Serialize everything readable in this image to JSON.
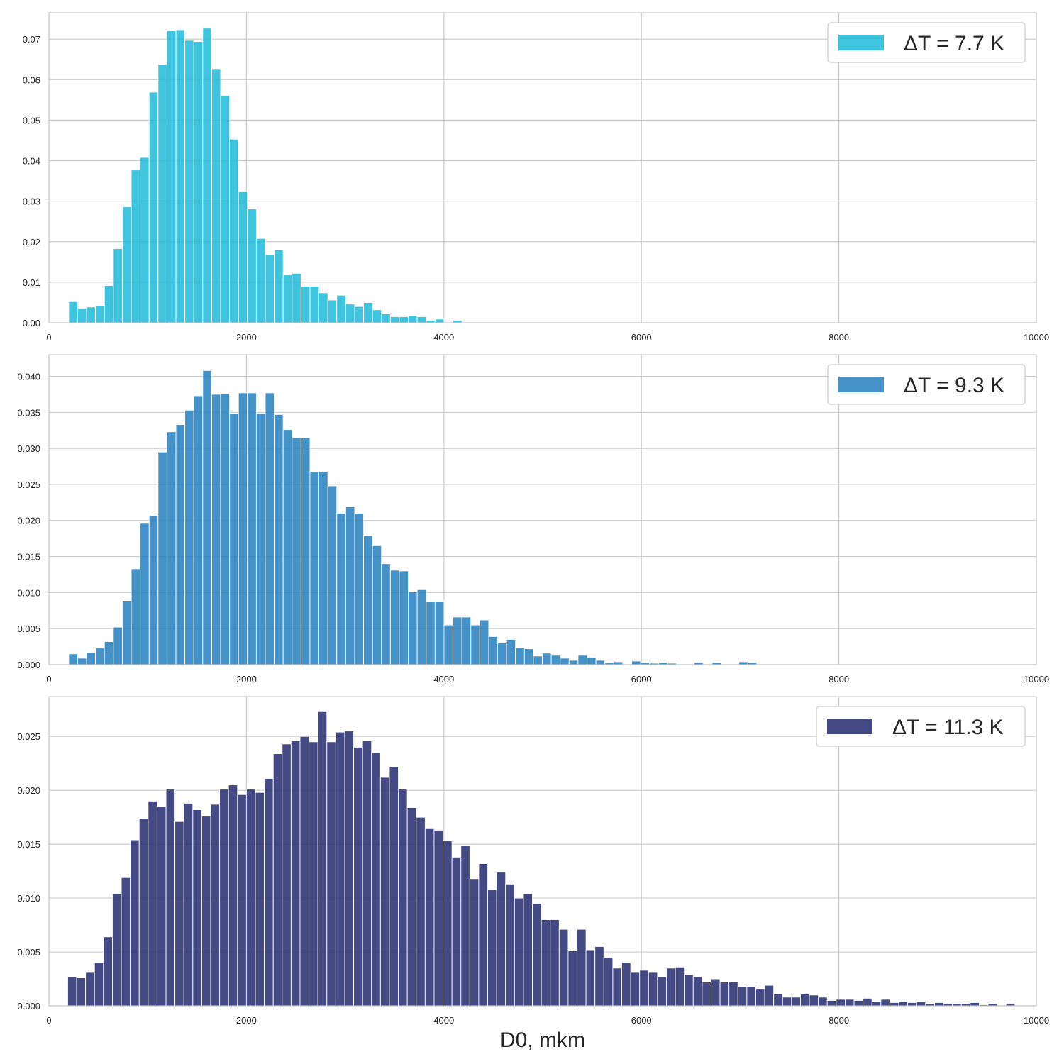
{
  "colors": {
    "panel1": "#1cbad9",
    "panel2": "#237fbe",
    "panel3": "#232a6e",
    "grid": "#cccccc",
    "frame": "#cccccc"
  },
  "chart_data": [
    {
      "type": "bar",
      "legend": "ΔT = 7.7 K",
      "legend_position": "top-right",
      "grid": true,
      "xlim": [
        0,
        10000
      ],
      "ylim": [
        0,
        0.0765
      ],
      "xticks": [
        "0",
        "2000",
        "4000",
        "6000",
        "8000",
        "10000"
      ],
      "yticks": [
        "0.00",
        "0.01",
        "0.02",
        "0.03",
        "0.04",
        "0.05",
        "0.06",
        "0.07"
      ],
      "bin_start": 200,
      "bin_width": 90.5,
      "values": [
        0.0052,
        0.0036,
        0.0039,
        0.0042,
        0.0092,
        0.0183,
        0.0286,
        0.0377,
        0.0408,
        0.0569,
        0.0638,
        0.0722,
        0.0723,
        0.0697,
        0.0694,
        0.0727,
        0.0627,
        0.0561,
        0.0453,
        0.0324,
        0.0281,
        0.0208,
        0.0168,
        0.018,
        0.0118,
        0.0122,
        0.009,
        0.009,
        0.0074,
        0.0056,
        0.0068,
        0.0046,
        0.004,
        0.005,
        0.0032,
        0.0022,
        0.0015,
        0.0015,
        0.0018,
        0.0015,
        0.0006,
        0.0009,
        0.0,
        0.0006
      ]
    },
    {
      "type": "bar",
      "legend": "ΔT = 9.3 K",
      "legend_position": "top-right",
      "grid": true,
      "xlim": [
        0,
        10000
      ],
      "ylim": [
        0,
        0.043
      ],
      "xticks": [
        "0",
        "2000",
        "4000",
        "6000",
        "8000",
        "10000"
      ],
      "yticks": [
        "0.000",
        "0.005",
        "0.010",
        "0.015",
        "0.020",
        "0.025",
        "0.030",
        "0.035",
        "0.040"
      ],
      "bin_start": 200,
      "bin_width": 90.5,
      "values": [
        0.0015,
        0.0009,
        0.0017,
        0.0023,
        0.0032,
        0.0052,
        0.0089,
        0.0133,
        0.0196,
        0.0207,
        0.0295,
        0.0323,
        0.0333,
        0.0353,
        0.0373,
        0.0408,
        0.0375,
        0.0376,
        0.0348,
        0.0377,
        0.0377,
        0.0348,
        0.0377,
        0.0347,
        0.0326,
        0.0315,
        0.0315,
        0.0268,
        0.0268,
        0.0248,
        0.021,
        0.0219,
        0.021,
        0.0179,
        0.0165,
        0.014,
        0.0131,
        0.013,
        0.0101,
        0.0104,
        0.0088,
        0.0088,
        0.0055,
        0.0066,
        0.0066,
        0.0055,
        0.0062,
        0.0039,
        0.003,
        0.0035,
        0.0024,
        0.0022,
        0.0012,
        0.0016,
        0.0013,
        0.0009,
        0.0006,
        0.0013,
        0.001,
        0.0006,
        0.0003,
        0.0004,
        0.0,
        0.0005,
        0.0003,
        0.0002,
        0.0003,
        0.0002,
        0.0,
        0.0,
        0.0003,
        0.0,
        0.0003,
        0.0,
        0.0,
        0.0004,
        0.0003
      ]
    },
    {
      "type": "bar",
      "legend": "ΔT = 11.3 K",
      "legend_position": "top-right",
      "grid": true,
      "xlim": [
        0,
        10000
      ],
      "ylim": [
        0,
        0.0287
      ],
      "xlabel": "D0, mkm",
      "xticks": [
        "0",
        "2000",
        "4000",
        "6000",
        "8000",
        "10000"
      ],
      "yticks": [
        "0.000",
        "0.005",
        "0.010",
        "0.015",
        "0.020",
        "0.025"
      ],
      "bin_start": 190,
      "bin_width": 90.5,
      "values": [
        0.0027,
        0.0026,
        0.0031,
        0.004,
        0.0064,
        0.0104,
        0.0119,
        0.0154,
        0.0174,
        0.019,
        0.0185,
        0.0201,
        0.0171,
        0.0188,
        0.0182,
        0.0176,
        0.0187,
        0.0201,
        0.0205,
        0.0196,
        0.0201,
        0.0198,
        0.0211,
        0.0234,
        0.0243,
        0.0246,
        0.025,
        0.0245,
        0.0273,
        0.0245,
        0.0254,
        0.0255,
        0.024,
        0.0246,
        0.0235,
        0.0212,
        0.0222,
        0.0201,
        0.0184,
        0.0175,
        0.0165,
        0.0163,
        0.0153,
        0.0138,
        0.0149,
        0.0118,
        0.0132,
        0.0108,
        0.0124,
        0.0113,
        0.01,
        0.0104,
        0.0095,
        0.008,
        0.008,
        0.0071,
        0.0051,
        0.0071,
        0.0052,
        0.0055,
        0.0045,
        0.0035,
        0.004,
        0.0031,
        0.0033,
        0.0031,
        0.0027,
        0.0035,
        0.0036,
        0.0029,
        0.0027,
        0.0022,
        0.0025,
        0.0022,
        0.0022,
        0.0018,
        0.0018,
        0.0016,
        0.0019,
        0.0011,
        0.0008,
        0.0008,
        0.0011,
        0.001,
        0.0008,
        0.0005,
        0.0006,
        0.0006,
        0.0005,
        0.0007,
        0.0004,
        0.0006,
        0.0003,
        0.0004,
        0.0003,
        0.0004,
        0.0002,
        0.0003,
        0.0002,
        0.0002,
        0.0002,
        0.0003,
        0.0001,
        0.0002,
        0.0,
        0.0002
      ]
    }
  ]
}
